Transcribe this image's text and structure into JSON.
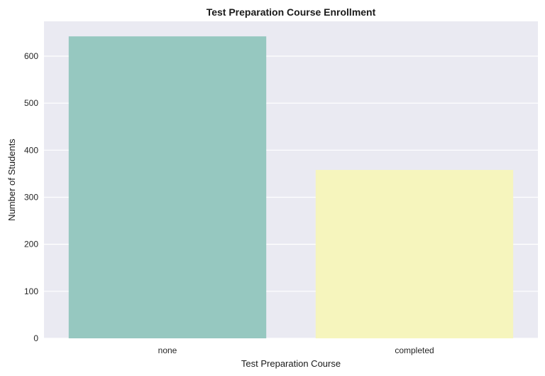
{
  "chart_data": {
    "type": "bar",
    "title": "Test Preparation Course Enrollment",
    "xlabel": "Test Preparation Course",
    "ylabel": "Number of Students",
    "categories": [
      "none",
      "completed"
    ],
    "values": [
      642,
      358
    ],
    "colors": [
      "#96c8c0",
      "#f6f5bd"
    ],
    "ylim": [
      0,
      674
    ],
    "yticks": [
      0,
      100,
      200,
      300,
      400,
      500,
      600
    ],
    "grid": true,
    "background": "#eaeaf2"
  }
}
